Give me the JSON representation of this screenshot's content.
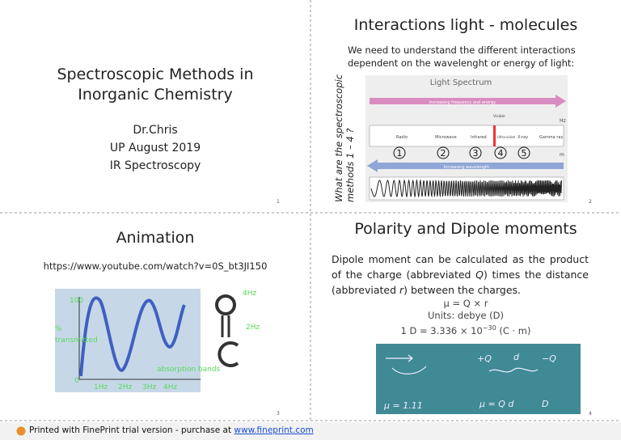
{
  "slides": [
    {
      "title_lines": [
        "Spectroscopic Methods in",
        "Inorganic Chemistry"
      ],
      "lines": [
        "Dr.Chris",
        "UP August 2019",
        "IR Spectroscopy"
      ],
      "page": "1"
    },
    {
      "title": "Interactions light - molecules",
      "text": "We need to understand the different interactions dependent on the wavelenght or energy of light:",
      "side_note_lines": [
        "What are the spectroscopic",
        "methods 1 – 4 ?"
      ],
      "figure": {
        "title": "Light Spectrum",
        "top_arrow": "Increasing frequency and energy",
        "bottom_arrow": "Increasing wavelength",
        "visible": "Visible",
        "bands": [
          "Radio",
          "Microwave",
          "Infrared",
          "Ultra-violet",
          "X-ray",
          "Gamma ray"
        ],
        "numbers": [
          "1",
          "2",
          "3",
          "4",
          "5"
        ],
        "unit_top": "Hz",
        "unit_bottom": "m"
      },
      "page": "2"
    },
    {
      "title": "Animation",
      "url": "https://www.youtube.com/watch?v=0S_bt3JI150",
      "figure": {
        "y_top": "100",
        "y_label_lines": [
          "%",
          "transmitted"
        ],
        "y_zero": "0",
        "x_labels": [
          "1Hz",
          "2Hz",
          "3Hz",
          "4Hz"
        ],
        "absorption": "absorption bands",
        "top_right": "4Hz",
        "mid_right": "2Hz"
      },
      "page": "3"
    },
    {
      "title": "Polarity and Dipole moments",
      "text_parts": [
        "Dipole moment can be calculated as the product of the charge (abbreviated ",
        "Q",
        ") times the distance (abbreviated ",
        "r",
        ") between the charges."
      ],
      "formulas": [
        "μ = Q × r",
        "Units: debye (D)",
        "1 D = 3.336 × 10",
        "−30",
        " (C · m)"
      ],
      "board": [
        "μ = 1.11",
        "μ = Q d",
        "+Q",
        "d",
        "−Q",
        "D"
      ],
      "page": "4"
    }
  ],
  "footer": {
    "text": "Printed with FinePrint trial version - purchase at ",
    "link": "www.fineprint.com"
  }
}
